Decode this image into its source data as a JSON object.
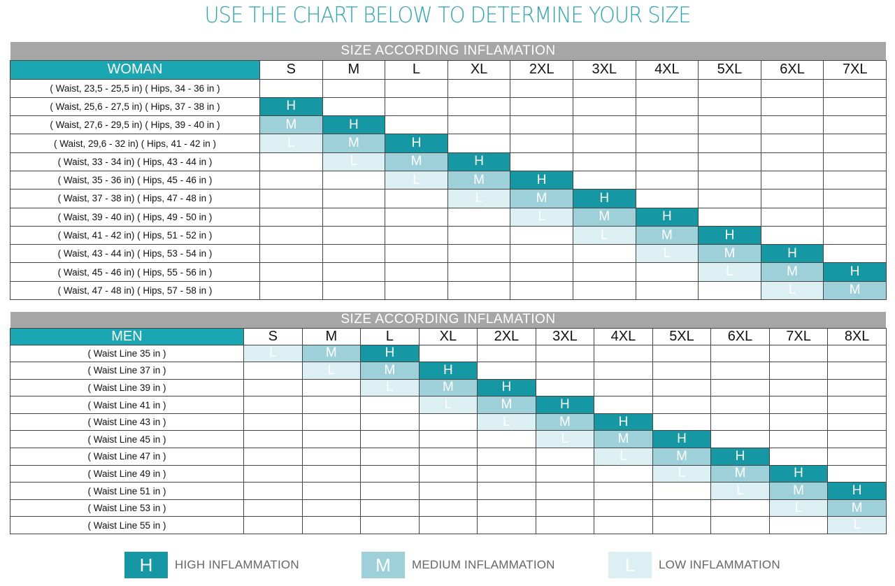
{
  "title": "USE THE CHART BELOW TO DETERMINE YOUR SIZE",
  "woman_chart": {
    "band_title": "SIZE ACCORDING INFLAMATION",
    "corner_label": "WOMAN",
    "sizes": [
      "S",
      "M",
      "L",
      "XL",
      "2XL",
      "3XL",
      "4XL",
      "5XL",
      "6XL",
      "7XL"
    ],
    "rows": [
      {
        "label": "( Waist, 23,5 - 25,5 in)  ( Hips, 34 - 36 in )",
        "cells": [
          "",
          "",
          "",
          "",
          "",
          "",
          "",
          "",
          "",
          ""
        ]
      },
      {
        "label": "( Waist, 25,6 - 27,5 in)  ( Hips, 37 - 38 in )",
        "cells": [
          "H",
          "",
          "",
          "",
          "",
          "",
          "",
          "",
          "",
          ""
        ]
      },
      {
        "label": "( Waist, 27,6 - 29,5 in)  ( Hips, 39 - 40 in )",
        "cells": [
          "M",
          "H",
          "",
          "",
          "",
          "",
          "",
          "",
          "",
          ""
        ]
      },
      {
        "label": "( Waist, 29,6 - 32    in)  ( Hips, 41 - 42 in )",
        "cells": [
          "L",
          "M",
          "H",
          "",
          "",
          "",
          "",
          "",
          "",
          ""
        ]
      },
      {
        "label": "( Waist, 33  -  34     in)  ( Hips, 43 - 44 in )",
        "cells": [
          "",
          "L",
          "M",
          "H",
          "",
          "",
          "",
          "",
          "",
          ""
        ]
      },
      {
        "label": "( Waist, 35  -  36     in)  ( Hips, 45 - 46 in )",
        "cells": [
          "",
          "",
          "L",
          "M",
          "H",
          "",
          "",
          "",
          "",
          ""
        ]
      },
      {
        "label": "( Waist, 37  -  38     in)  ( Hips, 47 - 48 in )",
        "cells": [
          "",
          "",
          "",
          "L",
          "M",
          "H",
          "",
          "",
          "",
          ""
        ]
      },
      {
        "label": "( Waist, 39  -  40     in)  ( Hips, 49 - 50 in )",
        "cells": [
          "",
          "",
          "",
          "",
          "L",
          "M",
          "H",
          "",
          "",
          ""
        ]
      },
      {
        "label": "( Waist, 41  -  42     in)  ( Hips, 51 - 52 in )",
        "cells": [
          "",
          "",
          "",
          "",
          "",
          "L",
          "M",
          "H",
          "",
          ""
        ]
      },
      {
        "label": "( Waist, 43  -  44     in)  ( Hips, 53 - 54 in )",
        "cells": [
          "",
          "",
          "",
          "",
          "",
          "",
          "L",
          "M",
          "H",
          ""
        ]
      },
      {
        "label": "( Waist, 45  -  46     in)  ( Hips, 55 - 56 in )",
        "cells": [
          "",
          "",
          "",
          "",
          "",
          "",
          "",
          "L",
          "M",
          "H"
        ]
      },
      {
        "label": "( Waist, 47  -  48     in)  ( Hips, 57 - 58 in )",
        "cells": [
          "",
          "",
          "",
          "",
          "",
          "",
          "",
          "",
          "L",
          "M"
        ]
      }
    ]
  },
  "men_chart": {
    "band_title": "SIZE ACCORDING INFLAMATION",
    "corner_label": "MEN",
    "sizes": [
      "S",
      "M",
      "L",
      "XL",
      "2XL",
      "3XL",
      "4XL",
      "5XL",
      "6XL",
      "7XL",
      "8XL"
    ],
    "rows": [
      {
        "label": "( Waist Line  35 in )",
        "cells": [
          "L",
          "M",
          "H",
          "",
          "",
          "",
          "",
          "",
          "",
          "",
          ""
        ]
      },
      {
        "label": "( Waist Line  37 in )",
        "cells": [
          "",
          "L",
          "M",
          "H",
          "",
          "",
          "",
          "",
          "",
          "",
          ""
        ]
      },
      {
        "label": "( Waist Line  39 in )",
        "cells": [
          "",
          "",
          "L",
          "M",
          "H",
          "",
          "",
          "",
          "",
          "",
          ""
        ]
      },
      {
        "label": "( Waist Line  41 in )",
        "cells": [
          "",
          "",
          "",
          "L",
          "M",
          "H",
          "",
          "",
          "",
          "",
          ""
        ]
      },
      {
        "label": "( Waist Line  43 in )",
        "cells": [
          "",
          "",
          "",
          "",
          "L",
          "M",
          "H",
          "",
          "",
          "",
          ""
        ]
      },
      {
        "label": "( Waist Line  45 in )",
        "cells": [
          "",
          "",
          "",
          "",
          "",
          "L",
          "M",
          "H",
          "",
          "",
          ""
        ]
      },
      {
        "label": "( Waist Line  47 in )",
        "cells": [
          "",
          "",
          "",
          "",
          "",
          "",
          "L",
          "M",
          "H",
          "",
          ""
        ]
      },
      {
        "label": "( Waist Line  49 in )",
        "cells": [
          "",
          "",
          "",
          "",
          "",
          "",
          "",
          "L",
          "M",
          "H",
          ""
        ]
      },
      {
        "label": "( Waist Line  51 in )",
        "cells": [
          "",
          "",
          "",
          "",
          "",
          "",
          "",
          "",
          "L",
          "M",
          "H"
        ]
      },
      {
        "label": "( Waist Line  53 in )",
        "cells": [
          "",
          "",
          "",
          "",
          "",
          "",
          "",
          "",
          "",
          "L",
          "M"
        ]
      },
      {
        "label": "( Waist Line  55 in )",
        "cells": [
          "",
          "",
          "",
          "",
          "",
          "",
          "",
          "",
          "",
          "",
          "L"
        ]
      }
    ]
  },
  "legend": [
    {
      "code": "H",
      "label": "HIGH INFLAMMATION",
      "color": "#1597a4"
    },
    {
      "code": "M",
      "label": "MEDIUM INFLAMMATION",
      "color": "#9ed0da"
    },
    {
      "code": "L",
      "label": "LOW INFLAMMATION",
      "color": "#dcf0f4"
    }
  ],
  "colors": {
    "accent": "#1aa6b3",
    "band": "#a6a6a6",
    "high": "#1597a4",
    "medium": "#9ed0da",
    "low": "#dcf0f4"
  }
}
